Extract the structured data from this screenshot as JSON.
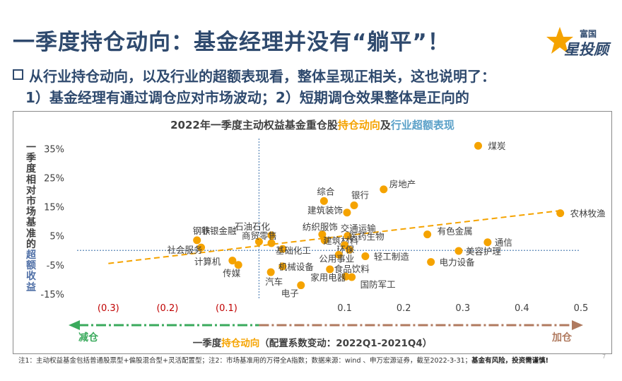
{
  "header": {
    "title": "一季度持仓动向：基金经理并没有“躺平”！",
    "logo_top": "富国",
    "logo_main": "星投顾"
  },
  "subtitle": {
    "line1": "从行业持仓动向，以及行业的超额表现看，整体呈现正相关，这也说明了：",
    "line2": "1）基金经理有通过调仓应对市场波动；2）短期调仓效果整体是正向的"
  },
  "chart_data": {
    "type": "scatter",
    "title_parts": [
      "2022年一季度主动权益基金重仓股",
      "持仓动向",
      "及",
      "行业超额表现"
    ],
    "ylabel_chars": [
      "一",
      "季",
      "度",
      "相",
      "对",
      "市",
      "场",
      "基",
      "准",
      "的",
      "超",
      "额",
      "收",
      "益"
    ],
    "ylabel_highlight_from": 10,
    "xlabel_parts": [
      "一季度",
      "持仓动向",
      "（配置系数变动：2022Q1-2021Q4）"
    ],
    "x_ticks": [
      -0.3,
      -0.2,
      -0.1,
      0.1,
      0.2,
      0.3,
      0.4,
      0.5
    ],
    "x_tick_labels": [
      "(0.3)",
      "(0.2)",
      "(0.1)",
      "0.1",
      "0.2",
      "0.3",
      "0.4",
      "0.5"
    ],
    "y_ticks": [
      -0.15,
      -0.05,
      0.05,
      0.15,
      0.25,
      0.35
    ],
    "y_tick_labels": [
      "-15%",
      "-5%",
      "5%",
      "15%",
      "25%",
      "35%"
    ],
    "xlim": [
      -0.365,
      0.53
    ],
    "ylim": [
      -0.16,
      0.38
    ],
    "vline_x": -0.045,
    "hline_y": 0.0,
    "trend": {
      "x0": -0.3,
      "y0": -0.045,
      "x1": 0.47,
      "y1": 0.138
    },
    "arrow_left": "减仓",
    "arrow_right": "加仓",
    "point_color": "#f5a300",
    "points": [
      {
        "name": "煤炭",
        "x": 0.326,
        "y": 0.36
      },
      {
        "name": "房地产",
        "x": 0.166,
        "y": 0.21
      },
      {
        "name": "综合",
        "x": 0.065,
        "y": 0.17
      },
      {
        "name": "银行",
        "x": 0.116,
        "y": 0.155
      },
      {
        "name": "建筑装饰",
        "x": 0.104,
        "y": 0.13
      },
      {
        "name": "农林牧渔",
        "x": 0.465,
        "y": 0.128
      },
      {
        "name": "石油石化",
        "x": -0.024,
        "y": 0.052
      },
      {
        "name": "纺织服饰",
        "x": 0.062,
        "y": 0.055
      },
      {
        "name": "交通运输",
        "x": 0.105,
        "y": 0.05
      },
      {
        "name": "有色金属",
        "x": 0.24,
        "y": 0.055
      },
      {
        "name": "钢铁",
        "x": -0.15,
        "y": 0.035
      },
      {
        "name": "非银金融",
        "x": -0.045,
        "y": 0.03
      },
      {
        "name": "建筑材料",
        "x": 0.066,
        "y": 0.035
      },
      {
        "name": "医药生物",
        "x": 0.1,
        "y": 0.018
      },
      {
        "name": "通信",
        "x": 0.342,
        "y": 0.028
      },
      {
        "name": "社会服务",
        "x": -0.143,
        "y": 0.01
      },
      {
        "name": "商贸零售",
        "x": -0.024,
        "y": 0.025
      },
      {
        "name": "基础化工",
        "x": -0.005,
        "y": 0.005
      },
      {
        "name": "环保",
        "x": 0.108,
        "y": 0.002
      },
      {
        "name": "美容护理",
        "x": 0.293,
        "y": -0.002
      },
      {
        "name": "电力设备",
        "x": 0.246,
        "y": -0.04
      },
      {
        "name": "轻工制造",
        "x": 0.135,
        "y": -0.02
      },
      {
        "name": "公用事业",
        "x": 0.09,
        "y": -0.015
      },
      {
        "name": "计算机",
        "x": -0.09,
        "y": -0.035
      },
      {
        "name": "传媒",
        "x": -0.08,
        "y": -0.05
      },
      {
        "name": "机械设备",
        "x": -0.005,
        "y": -0.055
      },
      {
        "name": "汽车",
        "x": -0.025,
        "y": -0.075
      },
      {
        "name": "食品饮料",
        "x": 0.075,
        "y": -0.065
      },
      {
        "name": "家用电器",
        "x": 0.102,
        "y": -0.09
      },
      {
        "name": "电子",
        "x": 0.026,
        "y": -0.12
      },
      {
        "name": "国防军工",
        "x": 0.112,
        "y": -0.092
      }
    ]
  },
  "footnote": {
    "text": "注1：主动权益基金包括普通股票型+偏股混合型+灵活配置型；注2：市场基准用的万得全A指数；数据来源：wind 、申万宏源证券，截至2022-3-31；",
    "bold": "基金有风险，投资需谨慎!"
  },
  "page_number": "7"
}
